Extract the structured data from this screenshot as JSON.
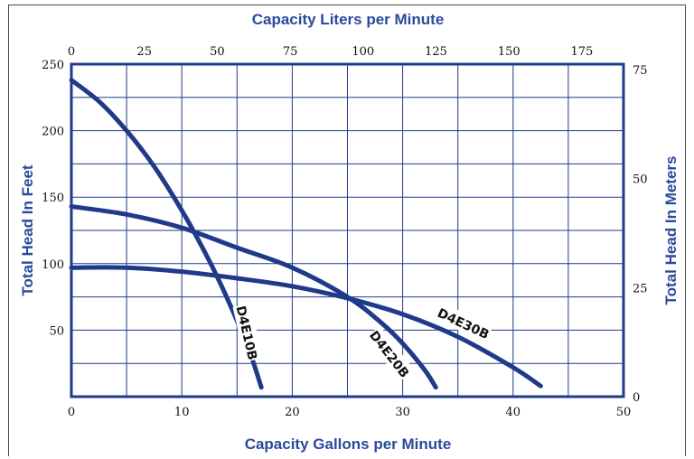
{
  "chart_data": {
    "type": "line",
    "title": "",
    "top_axis_label": "Capacity Liters per Minute",
    "bottom_axis_label": "Capacity Gallons per Minute",
    "left_axis_label": "Total Head In Feet",
    "right_axis_label": "Total Head In Meters",
    "x_gpm_range": [
      0,
      50
    ],
    "x_lpm_range": [
      0,
      189.27
    ],
    "y_feet_range": [
      0,
      250
    ],
    "y_meters_range": [
      0,
      76.2
    ],
    "x_gpm_ticks": [
      "0",
      "10",
      "20",
      "30",
      "40",
      "50"
    ],
    "x_lpm_ticks": [
      "0",
      "25",
      "50",
      "75",
      "100",
      "125",
      "150",
      "175"
    ],
    "y_feet_ticks": [
      "50",
      "100",
      "150",
      "200",
      "250"
    ],
    "y_meters_ticks": [
      "0",
      "25",
      "50",
      "75"
    ],
    "grid": true,
    "series": [
      {
        "name": "D4E10B",
        "x": [
          0,
          2.5,
          5,
          7.5,
          10,
          12,
          13.5,
          15,
          16.3,
          17.2
        ],
        "y": [
          238,
          222,
          200,
          173,
          140,
          110,
          85,
          57,
          30,
          7
        ]
      },
      {
        "name": "D4E20B",
        "x": [
          0,
          5,
          10,
          15,
          20,
          25,
          28,
          30,
          32,
          33
        ],
        "y": [
          143,
          137,
          127,
          112,
          97,
          75,
          56,
          40,
          20,
          7
        ]
      },
      {
        "name": "D4E30B",
        "x": [
          0,
          5,
          10,
          15,
          20,
          25,
          30,
          35,
          40,
          42.5
        ],
        "y": [
          97,
          97,
          94,
          89,
          83,
          74,
          62,
          45,
          22,
          8
        ]
      }
    ]
  },
  "colors": {
    "curve": "#203a8a",
    "axis": "#1f3b8c",
    "grid": "#1f3b8c",
    "title": "#2a4a9a"
  }
}
